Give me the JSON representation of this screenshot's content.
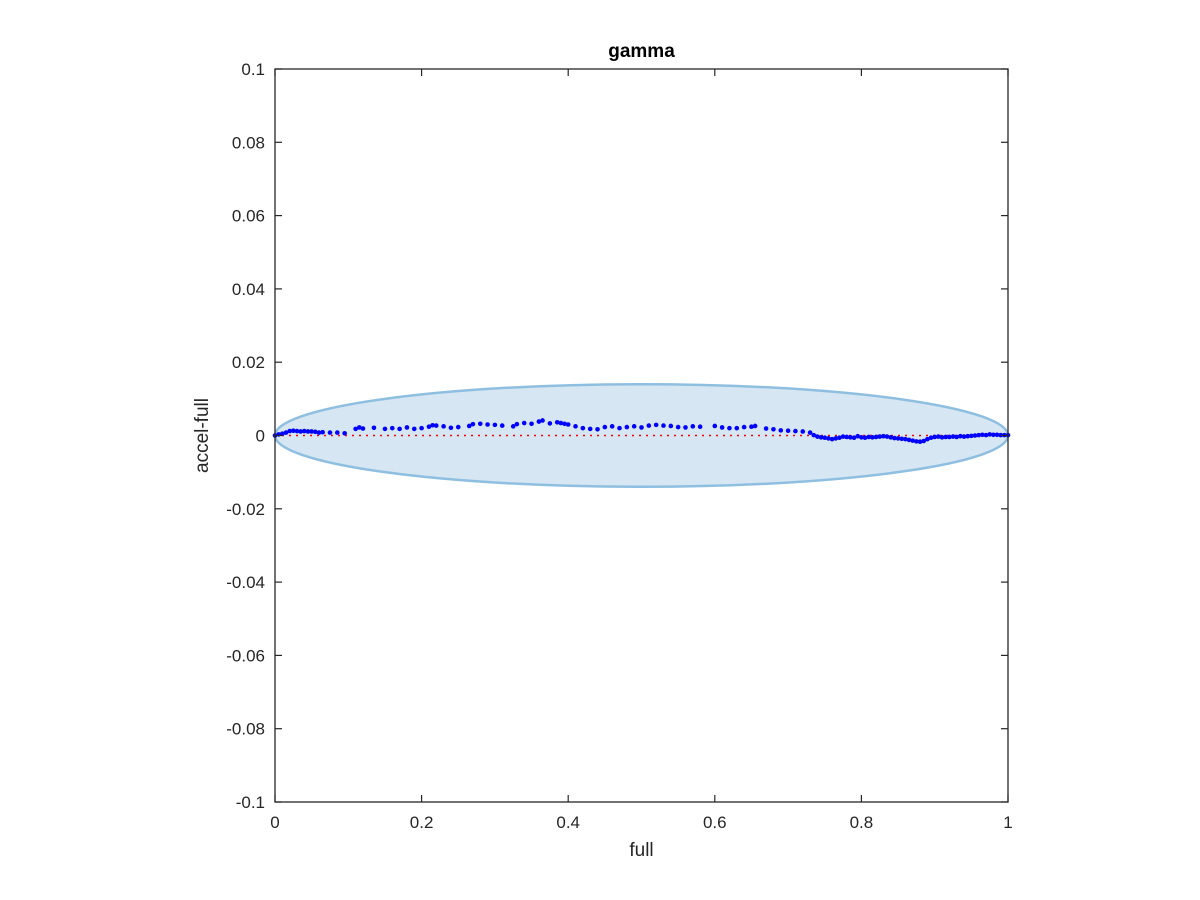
{
  "chart_data": {
    "type": "scatter",
    "title": "gamma",
    "xlabel": "full",
    "ylabel": "accel-full",
    "xlim": [
      0,
      1
    ],
    "ylim": [
      -0.1,
      0.1
    ],
    "xticks": [
      0,
      0.2,
      0.4,
      0.6,
      0.8,
      1
    ],
    "xtick_labels": [
      "0",
      "0.2",
      "0.4",
      "0.6",
      "0.8",
      "1"
    ],
    "yticks": [
      0.1,
      0.08,
      0.06,
      0.04,
      0.02,
      0,
      -0.02,
      -0.04,
      -0.06,
      -0.08,
      -0.1
    ],
    "ytick_labels": [
      "0.1",
      "0.08",
      "0.06",
      "0.04",
      "0.02",
      "0",
      "-0.02",
      "-0.04",
      "-0.06",
      "-0.08",
      "-0.1"
    ],
    "grid": false,
    "ellipse": {
      "center": [
        0.5,
        0
      ],
      "x_semi_axis": 0.5,
      "y_semi_axis": 0.014,
      "fill": "#d6e6f3",
      "stroke": "#8fbfe0"
    },
    "reference_line": {
      "y": 0,
      "x": [
        0,
        1
      ],
      "color": "#ff0000",
      "style": "dotted"
    },
    "points_color": "#0000ff",
    "points": [
      [
        0.0,
        0.0
      ],
      [
        0.005,
        0.0003
      ],
      [
        0.01,
        0.0005
      ],
      [
        0.015,
        0.0008
      ],
      [
        0.02,
        0.0012
      ],
      [
        0.025,
        0.0013
      ],
      [
        0.03,
        0.0012
      ],
      [
        0.035,
        0.0011
      ],
      [
        0.04,
        0.0012
      ],
      [
        0.045,
        0.0011
      ],
      [
        0.05,
        0.0011
      ],
      [
        0.055,
        0.001
      ],
      [
        0.06,
        0.0008
      ],
      [
        0.065,
        0.0009
      ],
      [
        0.075,
        0.0008
      ],
      [
        0.085,
        0.0008
      ],
      [
        0.095,
        0.0006
      ],
      [
        0.11,
        0.0018
      ],
      [
        0.115,
        0.0022
      ],
      [
        0.12,
        0.0019
      ],
      [
        0.135,
        0.0021
      ],
      [
        0.15,
        0.0018
      ],
      [
        0.16,
        0.002
      ],
      [
        0.17,
        0.0018
      ],
      [
        0.18,
        0.0022
      ],
      [
        0.19,
        0.0018
      ],
      [
        0.2,
        0.002
      ],
      [
        0.21,
        0.0024
      ],
      [
        0.215,
        0.0028
      ],
      [
        0.22,
        0.0027
      ],
      [
        0.23,
        0.0025
      ],
      [
        0.24,
        0.0021
      ],
      [
        0.25,
        0.0023
      ],
      [
        0.265,
        0.0026
      ],
      [
        0.27,
        0.0031
      ],
      [
        0.28,
        0.0032
      ],
      [
        0.29,
        0.003
      ],
      [
        0.3,
        0.0029
      ],
      [
        0.31,
        0.0027
      ],
      [
        0.325,
        0.0025
      ],
      [
        0.33,
        0.0031
      ],
      [
        0.34,
        0.0034
      ],
      [
        0.35,
        0.0032
      ],
      [
        0.36,
        0.0038
      ],
      [
        0.365,
        0.0041
      ],
      [
        0.375,
        0.0033
      ],
      [
        0.385,
        0.0036
      ],
      [
        0.39,
        0.0034
      ],
      [
        0.395,
        0.0032
      ],
      [
        0.4,
        0.003
      ],
      [
        0.41,
        0.0025
      ],
      [
        0.42,
        0.002
      ],
      [
        0.43,
        0.0018
      ],
      [
        0.44,
        0.0017
      ],
      [
        0.45,
        0.0023
      ],
      [
        0.46,
        0.0025
      ],
      [
        0.47,
        0.002
      ],
      [
        0.48,
        0.0023
      ],
      [
        0.49,
        0.0025
      ],
      [
        0.5,
        0.0022
      ],
      [
        0.51,
        0.0027
      ],
      [
        0.52,
        0.0029
      ],
      [
        0.53,
        0.0027
      ],
      [
        0.54,
        0.0026
      ],
      [
        0.55,
        0.0023
      ],
      [
        0.56,
        0.0022
      ],
      [
        0.57,
        0.0025
      ],
      [
        0.58,
        0.0024
      ],
      [
        0.6,
        0.0026
      ],
      [
        0.61,
        0.0022
      ],
      [
        0.62,
        0.002
      ],
      [
        0.63,
        0.002
      ],
      [
        0.64,
        0.0023
      ],
      [
        0.65,
        0.0024
      ],
      [
        0.655,
        0.0026
      ],
      [
        0.67,
        0.0019
      ],
      [
        0.68,
        0.0017
      ],
      [
        0.69,
        0.0014
      ],
      [
        0.7,
        0.0013
      ],
      [
        0.71,
        0.0012
      ],
      [
        0.72,
        0.0011
      ],
      [
        0.73,
        0.0008
      ],
      [
        0.735,
        0.0001
      ],
      [
        0.74,
        -0.0003
      ],
      [
        0.745,
        -0.0005
      ],
      [
        0.75,
        -0.0006
      ],
      [
        0.755,
        -0.0008
      ],
      [
        0.76,
        -0.001
      ],
      [
        0.765,
        -0.0008
      ],
      [
        0.77,
        -0.0006
      ],
      [
        0.775,
        -0.0003
      ],
      [
        0.78,
        -0.0004
      ],
      [
        0.785,
        -0.0005
      ],
      [
        0.79,
        -0.0006
      ],
      [
        0.795,
        -0.0002
      ],
      [
        0.8,
        -0.0005
      ],
      [
        0.805,
        -0.0006
      ],
      [
        0.81,
        -0.0004
      ],
      [
        0.815,
        -0.0005
      ],
      [
        0.82,
        -0.0004
      ],
      [
        0.825,
        -0.0003
      ],
      [
        0.83,
        -0.0002
      ],
      [
        0.835,
        -0.0003
      ],
      [
        0.84,
        -0.0005
      ],
      [
        0.845,
        -0.0007
      ],
      [
        0.85,
        -0.0008
      ],
      [
        0.855,
        -0.0009
      ],
      [
        0.86,
        -0.001
      ],
      [
        0.865,
        -0.0012
      ],
      [
        0.87,
        -0.0014
      ],
      [
        0.875,
        -0.0016
      ],
      [
        0.88,
        -0.0017
      ],
      [
        0.885,
        -0.0015
      ],
      [
        0.89,
        -0.001
      ],
      [
        0.895,
        -0.0006
      ],
      [
        0.9,
        -0.0004
      ],
      [
        0.905,
        -0.0003
      ],
      [
        0.91,
        -0.0005
      ],
      [
        0.915,
        -0.0004
      ],
      [
        0.92,
        -0.0004
      ],
      [
        0.925,
        -0.0003
      ],
      [
        0.93,
        -0.0004
      ],
      [
        0.935,
        -0.0002
      ],
      [
        0.94,
        -0.0003
      ],
      [
        0.945,
        -0.0002
      ],
      [
        0.95,
        -0.0001
      ],
      [
        0.955,
        0.0
      ],
      [
        0.96,
        0.0001
      ],
      [
        0.965,
        0.0002
      ],
      [
        0.97,
        0.0001
      ],
      [
        0.975,
        0.0003
      ],
      [
        0.98,
        0.0002
      ],
      [
        0.985,
        0.0002
      ],
      [
        0.99,
        0.0001
      ],
      [
        0.995,
        0.0001
      ],
      [
        1.0,
        0.0001
      ]
    ]
  }
}
